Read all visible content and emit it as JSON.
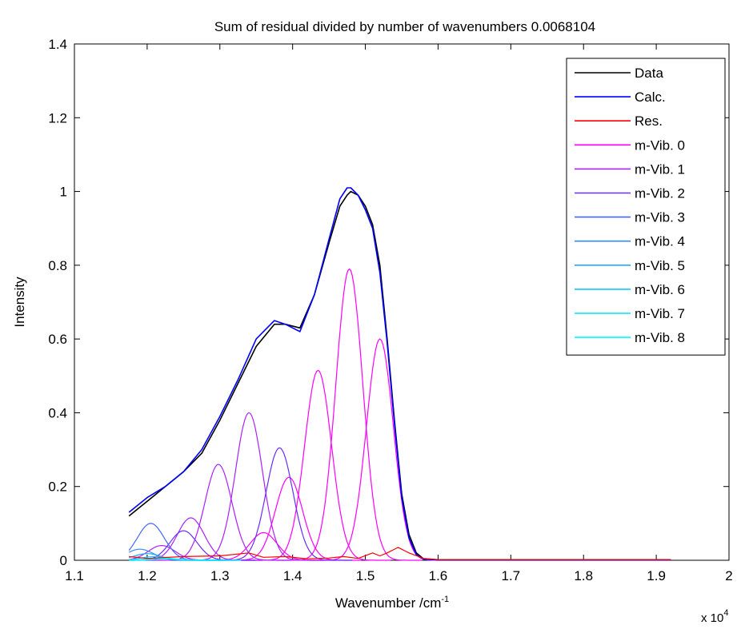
{
  "chart_data": {
    "type": "line",
    "title": "Sum of residual divided by number of wavenumbers 0.0068104",
    "xlabel": "Wavenumber /cm",
    "xlabel_sup": "-1",
    "ylabel": "Intensity",
    "x_multiplier_label": "x 10",
    "x_multiplier_exp": "4",
    "xlim": [
      1.1,
      2.0
    ],
    "ylim": [
      0,
      1.4
    ],
    "x_ticks": [
      1.1,
      1.2,
      1.3,
      1.4,
      1.5,
      1.6,
      1.7,
      1.8,
      1.9,
      2.0
    ],
    "x_tick_labels": [
      "1.1",
      "1.2",
      "1.3",
      "1.4",
      "1.5",
      "1.6",
      "1.7",
      "1.8",
      "1.9",
      "2"
    ],
    "y_ticks": [
      0,
      0.2,
      0.4,
      0.6,
      0.8,
      1.0,
      1.2,
      1.4
    ],
    "y_tick_labels": [
      "0",
      "0.2",
      "0.4",
      "0.6",
      "0.8",
      "1",
      "1.2",
      "1.4"
    ],
    "grid": false,
    "legend_position": "top-right",
    "series": [
      {
        "name": "Data",
        "color": "#000000",
        "x": [
          1.175,
          1.2,
          1.225,
          1.25,
          1.275,
          1.3,
          1.325,
          1.35,
          1.375,
          1.39,
          1.41,
          1.43,
          1.45,
          1.465,
          1.475,
          1.48,
          1.49,
          1.5,
          1.51,
          1.52,
          1.53,
          1.54,
          1.55,
          1.56,
          1.57,
          1.58,
          1.6,
          1.7,
          1.8,
          1.92
        ],
        "y": [
          0.12,
          0.16,
          0.2,
          0.24,
          0.29,
          0.38,
          0.48,
          0.58,
          0.64,
          0.64,
          0.63,
          0.72,
          0.86,
          0.96,
          0.99,
          1.0,
          0.99,
          0.96,
          0.91,
          0.8,
          0.6,
          0.38,
          0.18,
          0.07,
          0.02,
          0.004,
          0.001,
          0.001,
          0.001,
          0.001
        ]
      },
      {
        "name": "Calc.",
        "color": "#0000ff",
        "x": [
          1.175,
          1.2,
          1.225,
          1.25,
          1.275,
          1.3,
          1.325,
          1.35,
          1.375,
          1.39,
          1.41,
          1.43,
          1.45,
          1.465,
          1.475,
          1.48,
          1.49,
          1.5,
          1.51,
          1.52,
          1.53,
          1.54,
          1.55,
          1.56,
          1.57,
          1.58,
          1.6,
          1.7,
          1.8,
          1.92
        ],
        "y": [
          0.13,
          0.17,
          0.2,
          0.24,
          0.3,
          0.39,
          0.49,
          0.6,
          0.65,
          0.64,
          0.62,
          0.72,
          0.87,
          0.98,
          1.01,
          1.01,
          0.99,
          0.95,
          0.9,
          0.78,
          0.59,
          0.37,
          0.17,
          0.06,
          0.015,
          0.003,
          0.001,
          0.001,
          0.001,
          0.001
        ]
      },
      {
        "name": "Res.",
        "color": "#ff0000",
        "x": [
          1.175,
          1.2,
          1.25,
          1.3,
          1.34,
          1.36,
          1.39,
          1.42,
          1.45,
          1.47,
          1.49,
          1.51,
          1.52,
          1.53,
          1.545,
          1.55,
          1.56,
          1.58,
          1.6,
          1.7,
          1.8,
          1.92
        ],
        "y": [
          0.01,
          0.005,
          0.01,
          0.012,
          0.02,
          0.008,
          0.01,
          0.004,
          0.006,
          0.01,
          0.005,
          0.02,
          0.012,
          0.02,
          0.035,
          0.03,
          0.02,
          0.005,
          0.002,
          0.002,
          0.002,
          0.002
        ]
      }
    ],
    "components": [
      {
        "name": "m-Vib. 0",
        "color": "#ff00ff",
        "peaks": [
          [
            1.478,
            0.79
          ],
          [
            1.435,
            0.515
          ],
          [
            1.52,
            0.6
          ],
          [
            1.395,
            0.225
          ],
          [
            1.36,
            0.075
          ]
        ]
      },
      {
        "name": "m-Vib. 1",
        "color": "#aa22ff",
        "peaks": [
          [
            1.34,
            0.4
          ],
          [
            1.298,
            0.26
          ],
          [
            1.26,
            0.115
          ],
          [
            1.22,
            0.04
          ]
        ]
      },
      {
        "name": "m-Vib. 2",
        "color": "#6a2cff",
        "peaks": [
          [
            1.382,
            0.305
          ],
          [
            1.25,
            0.08
          ]
        ]
      },
      {
        "name": "m-Vib. 3",
        "color": "#4466ff",
        "peaks": [
          [
            1.205,
            0.1
          ]
        ]
      },
      {
        "name": "m-Vib. 4",
        "color": "#3388ff",
        "peaks": [
          [
            1.19,
            0.03
          ]
        ]
      },
      {
        "name": "m-Vib. 5",
        "color": "#22a8ff",
        "peaks": [
          [
            1.2,
            0.018
          ]
        ]
      },
      {
        "name": "m-Vib. 6",
        "color": "#11c8ff",
        "peaks": [
          [
            1.21,
            0.01
          ]
        ]
      },
      {
        "name": "m-Vib. 7",
        "color": "#00e0ff",
        "peaks": [
          [
            1.22,
            0.006
          ]
        ]
      },
      {
        "name": "m-Vib. 8",
        "color": "#00ffff",
        "peaks": [
          [
            1.23,
            0.004
          ]
        ]
      }
    ]
  }
}
